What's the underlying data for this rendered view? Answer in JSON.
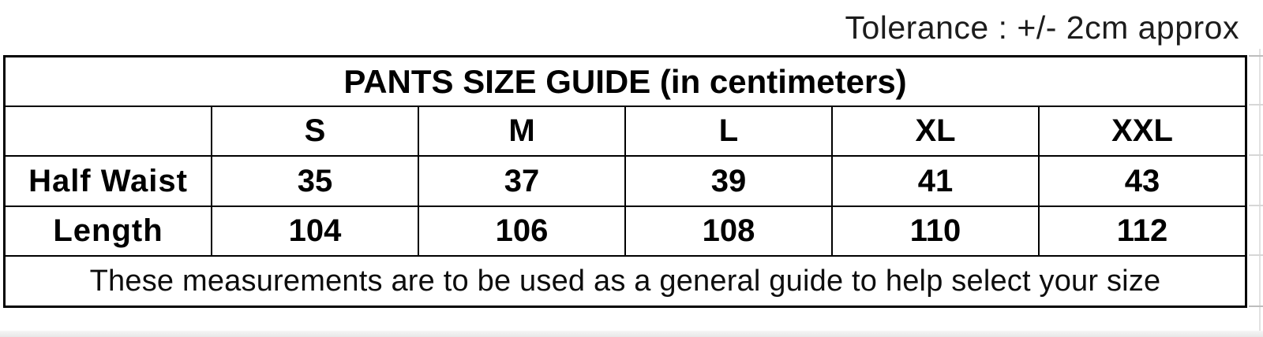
{
  "tolerance_note": "Tolerance : +/- 2cm approx",
  "table": {
    "title": "PANTS SIZE GUIDE (in centimeters)",
    "corner_label": "",
    "size_columns": [
      "S",
      "M",
      "L",
      "XL",
      "XXL"
    ],
    "rows": [
      {
        "label": "Half Waist",
        "values": [
          "35",
          "37",
          "39",
          "41",
          "43"
        ]
      },
      {
        "label": "Length",
        "values": [
          "104",
          "106",
          "108",
          "110",
          "112"
        ]
      }
    ],
    "footnote": "These measurements are to be used as a general guide to help select your size"
  },
  "colors": {
    "border": "#000000",
    "text": "#000000",
    "background": "#ffffff",
    "gridline_artifact": "#d7d7d7"
  }
}
